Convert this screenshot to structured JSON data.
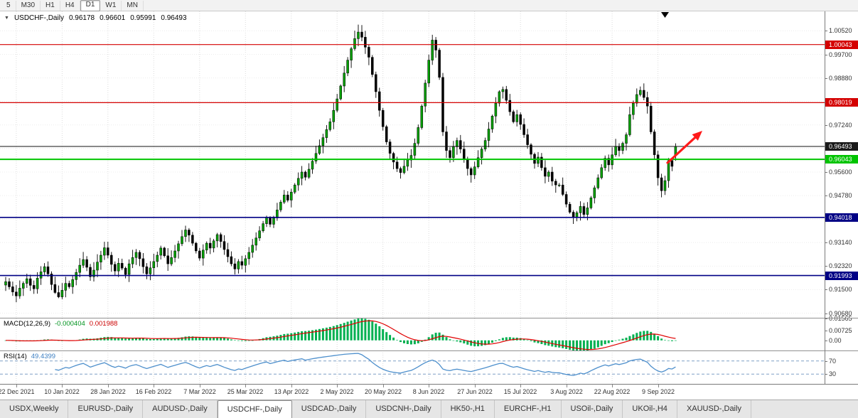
{
  "toolbar": {
    "timeframes": [
      "5",
      "M30",
      "H1",
      "H4",
      "D1",
      "W1",
      "MN"
    ],
    "active_timeframe": "D1"
  },
  "chart_header": {
    "collapse_icon": "▼",
    "symbol_period": "USDCHF-,Daily",
    "open": "0.96178",
    "high": "0.96601",
    "low": "0.95991",
    "close": "0.96493"
  },
  "indicator_labels": {
    "macd_name": "MACD(12,26,9)",
    "macd_main_value": "-0.000404",
    "macd_signal_value": "0.001988",
    "rsi_name": "RSI(14)",
    "rsi_value": "49.4399"
  },
  "price_axis": {
    "labels": [
      "1.00520",
      "0.99700",
      "0.98880",
      "0.98060",
      "0.97240",
      "0.96420",
      "0.95600",
      "0.94780",
      "0.93960",
      "0.93140",
      "0.92320",
      "0.91500",
      "0.90680"
    ],
    "badges": [
      {
        "text": "1.00043",
        "value": 1.00043,
        "bg": "#d40000"
      },
      {
        "text": "0.98019",
        "value": 0.98019,
        "bg": "#d40000"
      },
      {
        "text": "0.96493",
        "value": 0.96493,
        "bg": "#1a1a1a"
      },
      {
        "text": "0.96043",
        "value": 0.96043,
        "bg": "#00c400"
      },
      {
        "text": "0.94018",
        "value": 0.94018,
        "bg": "#000085"
      },
      {
        "text": "0.91993",
        "value": 0.91993,
        "bg": "#000085"
      }
    ]
  },
  "macd_axis": {
    "labels": [
      {
        "text": "0.01565",
        "value": 0.01565
      },
      {
        "text": "0.00725",
        "value": 0.00725
      },
      {
        "text": "0.00",
        "value": 0
      }
    ]
  },
  "rsi_axis": {
    "labels": [
      {
        "text": "70",
        "value": 70
      },
      {
        "text": "30",
        "value": 30
      }
    ]
  },
  "tabs": [
    "USDX,Weekly",
    "EURUSD-,Daily",
    "AUDUSD-,Daily",
    "USDCHF-,Daily",
    "USDCAD-,Daily",
    "USDCNH-,Daily",
    "HK50-,H1",
    "EURCHF-,H1",
    "USOil-,Daily",
    "UKOil-,H4",
    "XAUUSD-,Daily"
  ],
  "active_tab": "USDCHF-,Daily",
  "chart_data": {
    "type": "candlestick",
    "symbol": "USDCHF-",
    "timeframe": "Daily",
    "title": "USDCHF-,Daily",
    "last_ohlc": {
      "open": 0.96178,
      "high": 0.96601,
      "low": 0.95991,
      "close": 0.96493
    },
    "ylim": [
      0.9052,
      1.012
    ],
    "grid": true,
    "up_color": "#00a000",
    "down_color": "#000000",
    "closes": [
      0.9178,
      0.916,
      0.9142,
      0.9128,
      0.9155,
      0.9172,
      0.9188,
      0.9165,
      0.9153,
      0.919,
      0.9212,
      0.923,
      0.9205,
      0.9168,
      0.914,
      0.9125,
      0.9148,
      0.9172,
      0.916,
      0.9185,
      0.921,
      0.9235,
      0.9255,
      0.9228,
      0.9195,
      0.9218,
      0.9246,
      0.927,
      0.9296,
      0.927,
      0.9238,
      0.9215,
      0.9242,
      0.9225,
      0.9203,
      0.924,
      0.9262,
      0.928,
      0.9258,
      0.923,
      0.9205,
      0.9226,
      0.9248,
      0.927,
      0.9295,
      0.9268,
      0.924,
      0.9262,
      0.9285,
      0.931,
      0.9335,
      0.9358,
      0.934,
      0.9312,
      0.9285,
      0.926,
      0.9288,
      0.9312,
      0.9295,
      0.932,
      0.9342,
      0.9318,
      0.929,
      0.9265,
      0.924,
      0.9222,
      0.9248,
      0.9235,
      0.9258,
      0.928,
      0.9305,
      0.933,
      0.9355,
      0.938,
      0.9402,
      0.9378,
      0.94,
      0.9428,
      0.9455,
      0.948,
      0.9462,
      0.949,
      0.9515,
      0.9538,
      0.956,
      0.9542,
      0.957,
      0.9598,
      0.9625,
      0.9652,
      0.968,
      0.9708,
      0.9735,
      0.9775,
      0.9815,
      0.986,
      0.9905,
      0.995,
      0.999,
      1.0025,
      1.0048,
      1.003,
      0.9995,
      0.996,
      0.99,
      0.984,
      0.9775,
      0.9718,
      0.9665,
      0.9625,
      0.9595,
      0.9572,
      0.9558,
      0.958,
      0.9602,
      0.9618,
      0.966,
      0.9715,
      0.979,
      0.987,
      0.995,
      1.002,
      0.9985,
      0.989,
      0.97,
      0.9635,
      0.961,
      0.9648,
      0.967,
      0.964,
      0.9605,
      0.9572,
      0.955,
      0.9578,
      0.961,
      0.964,
      0.967,
      0.971,
      0.9755,
      0.98,
      0.984,
      0.9848,
      0.981,
      0.977,
      0.9735,
      0.976,
      0.9726,
      0.969,
      0.9655,
      0.9622,
      0.959,
      0.9612,
      0.9575,
      0.9545,
      0.956,
      0.9528,
      0.9515,
      0.9515,
      0.9482,
      0.9448,
      0.942,
      0.9402,
      0.9418,
      0.944,
      0.9412,
      0.9435,
      0.947,
      0.9505,
      0.954,
      0.9575,
      0.9608,
      0.9585,
      0.962,
      0.965,
      0.9635,
      0.966,
      0.969,
      0.976,
      0.98,
      0.983,
      0.9845,
      0.982,
      0.979,
      0.97,
      0.962,
      0.954,
      0.9495,
      0.953,
      0.96,
      0.958,
      0.96493
    ],
    "x_tick_labels": [
      "22 Dec 2021",
      "10 Jan 2022",
      "28 Jan 2022",
      "16 Feb 2022",
      "7 Mar 2022",
      "25 Mar 2022",
      "13 Apr 2022",
      "2 May 2022",
      "20 May 2022",
      "8 Jun 2022",
      "27 Jun 2022",
      "15 Jul 2022",
      "3 Aug 2022",
      "22 Aug 2022",
      "9 Sep 2022"
    ],
    "x_tick_indices": [
      3,
      16,
      29,
      42,
      55,
      68,
      81,
      94,
      107,
      120,
      133,
      146,
      159,
      172,
      185
    ],
    "horizontal_levels": [
      {
        "price": 1.00043,
        "color": "#d40000",
        "width": 1.2
      },
      {
        "price": 0.98019,
        "color": "#d40000",
        "width": 1.2
      },
      {
        "price": 0.96493,
        "color": "#111111",
        "width": 1
      },
      {
        "price": 0.96043,
        "color": "#00c400",
        "width": 2
      },
      {
        "price": 0.94018,
        "color": "#000085",
        "width": 1.6
      },
      {
        "price": 0.91993,
        "color": "#000085",
        "width": 1.6
      }
    ],
    "macd": {
      "range": [
        -0.00725,
        0.01565
      ],
      "histogram_color": "#00b050",
      "signal_color": "#e00000"
    },
    "rsi": {
      "range": [
        0,
        100
      ],
      "levels": [
        70,
        30
      ],
      "color": "#4d8fcc",
      "level_color": "#7f9fc6"
    },
    "annotation_arrow": {
      "color": "#ff1a1a",
      "direction": "up-right"
    }
  }
}
